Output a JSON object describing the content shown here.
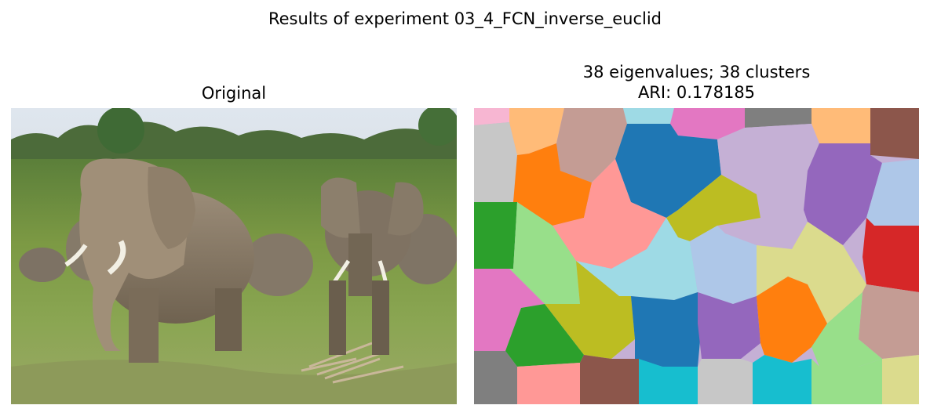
{
  "figure": {
    "suptitle": "Results of experiment 03_4_FCN_inverse_euclid"
  },
  "left_panel": {
    "title": "Original",
    "image_subject": "elephant herd on grassland"
  },
  "right_panel": {
    "title_line1": "38 eigenvalues; 38 clusters",
    "title_line2": "ARI: 0.178185",
    "eigenvalues": 38,
    "clusters": 38,
    "ari": 0.178185
  },
  "palette": {
    "blue": "#1f77b4",
    "light_blue": "#aec7e8",
    "orange": "#ff7f0e",
    "light_orange": "#ffbb78",
    "green": "#2ca02c",
    "light_green": "#98df8a",
    "red": "#d62728",
    "salmon": "#ff9896",
    "purple": "#9467bd",
    "lavender": "#c5b0d5",
    "brown": "#8c564b",
    "rose_brown": "#c49c94",
    "pink": "#e377c2",
    "light_pink": "#f7b6d2",
    "gray": "#7f7f7f",
    "light_gray": "#c7c7c7",
    "olive": "#bcbd22",
    "khaki": "#dbdb8d",
    "cyan": "#17becf",
    "light_cyan": "#9edae5"
  }
}
